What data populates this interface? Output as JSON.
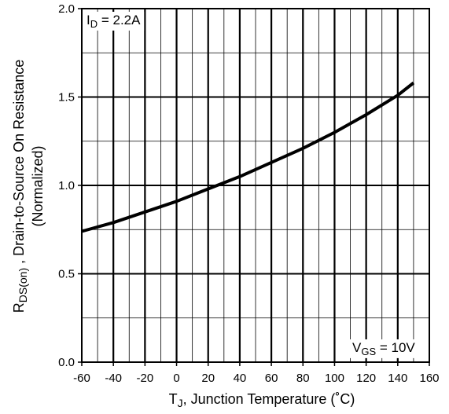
{
  "chart_data": {
    "type": "line",
    "title": "",
    "xlabel": {
      "main": "T",
      "sub": "J",
      "rest": ", Junction Temperature  (˚C)"
    },
    "ylabel": {
      "line1_main": "R",
      "line1_sub": "DS(on)",
      "line1_rest": " , Drain-to-Source On Resistance",
      "line2": "(Normalized)"
    },
    "xlim": [
      -60,
      160
    ],
    "ylim": [
      0.0,
      2.0
    ],
    "x_major_ticks": [
      -60,
      -40,
      -20,
      0,
      20,
      40,
      60,
      80,
      100,
      120,
      140,
      160
    ],
    "x_minor_step": 10,
    "y_major_ticks": [
      0.0,
      0.5,
      1.0,
      1.5,
      2.0
    ],
    "y_minor_step": 0.25,
    "y_tick_labels": [
      "0.0",
      "0.5",
      "1.0",
      "1.5",
      "2.0"
    ],
    "x_tick_labels": [
      "-60",
      "-40",
      "-20",
      "0",
      "20",
      "40",
      "60",
      "80",
      "100",
      "120",
      "140",
      "160"
    ],
    "grid": true,
    "annotations": {
      "id": {
        "main": "I",
        "sub": "D",
        "rest": " = 2.2A"
      },
      "vgs": {
        "main": "V",
        "sub": "GS",
        "rest": " = 10V"
      }
    },
    "series": [
      {
        "x": [
          -60,
          -40,
          -20,
          0,
          20,
          40,
          60,
          80,
          100,
          120,
          140,
          150
        ],
        "y": [
          0.74,
          0.79,
          0.85,
          0.91,
          0.98,
          1.05,
          1.13,
          1.21,
          1.3,
          1.4,
          1.51,
          1.58
        ]
      }
    ]
  }
}
